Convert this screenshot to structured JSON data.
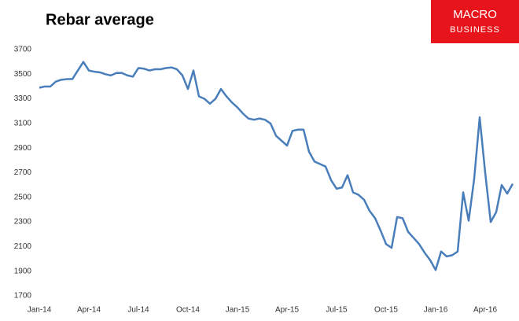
{
  "logo_top": "MACRO",
  "logo_bottom": "BUSINESS",
  "chart_data": {
    "type": "line",
    "title": "Rebar average",
    "categories": [
      "Jan-14",
      null,
      null,
      null,
      null,
      null,
      null,
      null,
      null,
      "Apr-14",
      null,
      null,
      null,
      null,
      null,
      null,
      null,
      null,
      "Jul-14",
      null,
      null,
      null,
      null,
      null,
      null,
      null,
      null,
      "Oct-14",
      null,
      null,
      null,
      null,
      null,
      null,
      null,
      null,
      "Jan-15",
      null,
      null,
      null,
      null,
      null,
      null,
      null,
      null,
      "Apr-15",
      null,
      null,
      null,
      null,
      null,
      null,
      null,
      null,
      "Jul-15",
      null,
      null,
      null,
      null,
      null,
      null,
      null,
      null,
      "Oct-15",
      null,
      null,
      null,
      null,
      null,
      null,
      null,
      null,
      "Jan-16",
      null,
      null,
      null,
      null,
      null,
      null,
      null,
      null,
      "Apr-16",
      null,
      null,
      null,
      null,
      null
    ],
    "series": [
      {
        "name": "Rebar average",
        "color": "#4a7ebb",
        "values": [
          3390,
          3400,
          3400,
          3440,
          3455,
          3460,
          3460,
          3530,
          3600,
          3530,
          3520,
          3515,
          3500,
          3490,
          3510,
          3510,
          3490,
          3480,
          3550,
          3545,
          3530,
          3540,
          3540,
          3550,
          3555,
          3540,
          3490,
          3380,
          3530,
          3320,
          3300,
          3260,
          3300,
          3380,
          3320,
          3270,
          3230,
          3180,
          3140,
          3130,
          3140,
          3130,
          3100,
          3000,
          2960,
          2920,
          3040,
          3050,
          3050,
          2870,
          2790,
          2770,
          2750,
          2640,
          2570,
          2580,
          2680,
          2540,
          2520,
          2480,
          2390,
          2330,
          2230,
          2120,
          2090,
          2340,
          2330,
          2220,
          2170,
          2120,
          2050,
          1990,
          1910,
          2060,
          2020,
          2030,
          2060,
          2540,
          2310,
          2650,
          3150,
          2700,
          2300,
          2380,
          2600,
          2530,
          2610
        ]
      }
    ],
    "ylim": [
      1700,
      3700
    ],
    "yticks": [
      1700,
      1900,
      2100,
      2300,
      2500,
      2700,
      2900,
      3100,
      3300,
      3500,
      3700
    ],
    "grid": false
  }
}
